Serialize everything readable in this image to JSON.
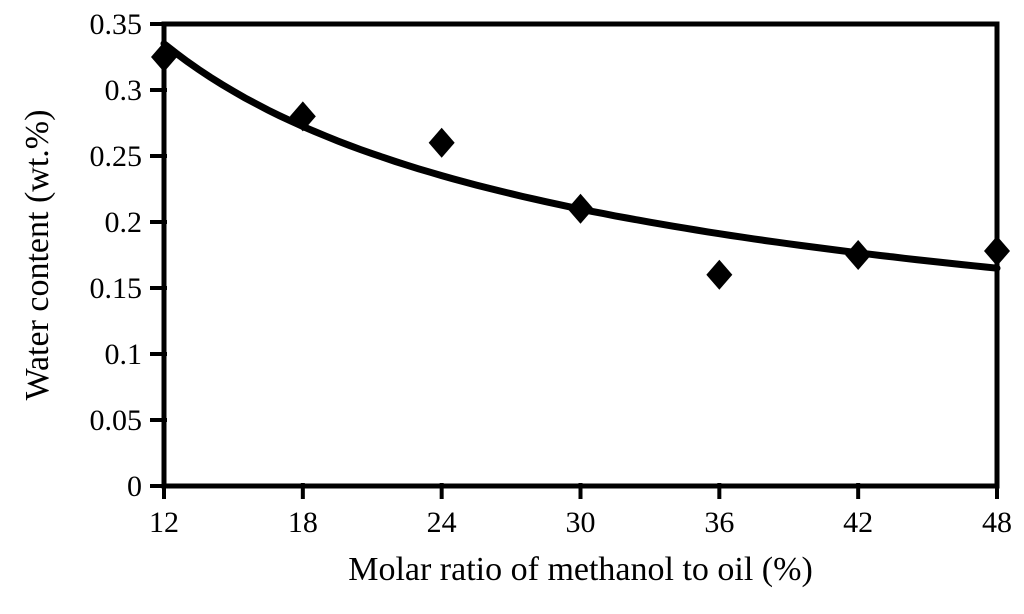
{
  "figure": {
    "background": "#ffffff",
    "foreground": "#000000"
  },
  "chart_data": {
    "type": "scatter",
    "title": "",
    "xlabel": "Molar ratio of methanol to oil (%)",
    "ylabel": "Water content (wt.%)",
    "xlim": [
      12,
      48
    ],
    "ylim": [
      0,
      0.35
    ],
    "x_ticks": [
      12,
      18,
      24,
      30,
      36,
      42,
      48
    ],
    "x_tick_labels": [
      "12",
      "18",
      "24",
      "30",
      "36",
      "42",
      "48"
    ],
    "y_ticks": [
      0,
      0.05,
      0.1,
      0.15,
      0.2,
      0.25,
      0.3,
      0.35
    ],
    "y_tick_labels": [
      "0",
      "0.05",
      "0.1",
      "0.15",
      "0.2",
      "0.25",
      "0.3",
      "0.35"
    ],
    "grid": false,
    "legend": null,
    "marker": "diamond",
    "series_color": "#000000",
    "points": [
      {
        "x": 12,
        "y": 0.325
      },
      {
        "x": 18,
        "y": 0.28
      },
      {
        "x": 24,
        "y": 0.26
      },
      {
        "x": 30,
        "y": 0.21
      },
      {
        "x": 36,
        "y": 0.16
      },
      {
        "x": 42,
        "y": 0.175
      },
      {
        "x": 48,
        "y": 0.178
      }
    ],
    "trendline": {
      "type": "power",
      "a": 1.193,
      "b": -0.511,
      "x_start": 12,
      "x_end": 48,
      "y_start": 0.335,
      "y_end": 0.165
    }
  }
}
